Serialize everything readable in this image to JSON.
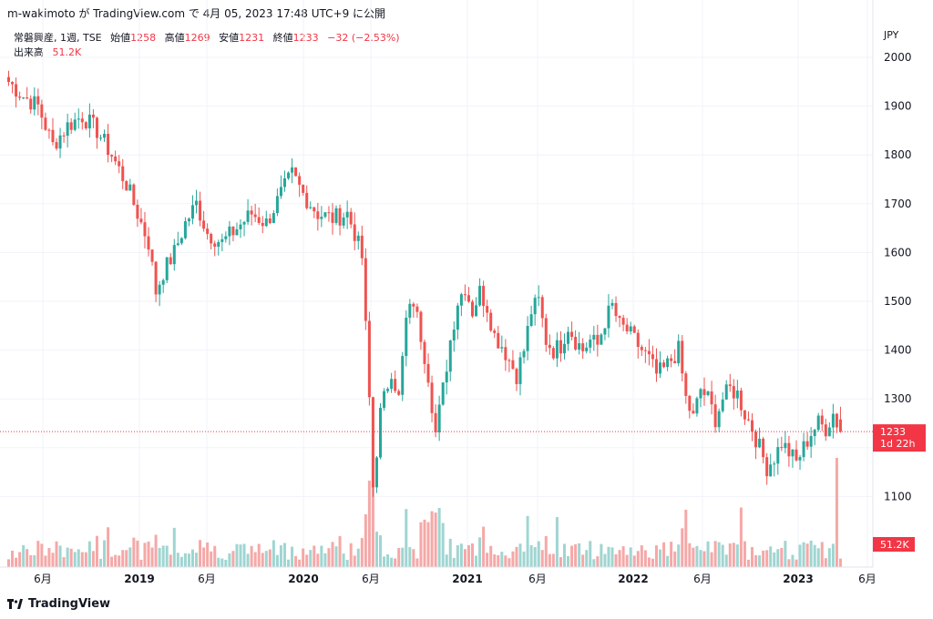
{
  "header": {
    "title": "m-wakimoto が TradingView.com で 4月 05, 2023 17:48 UTC+9 に公開"
  },
  "legend": {
    "symbol": "常磐興産, 1週, TSE",
    "open_label": "始値",
    "open": "1258",
    "high_label": "高値",
    "high": "1269",
    "low_label": "安値",
    "low": "1231",
    "close_label": "終値",
    "close": "1233",
    "change": "−32 (−2.53%)",
    "volume_label": "出来高",
    "volume": "51.2K"
  },
  "chart_data": {
    "type": "candlestick",
    "currency": "JPY",
    "y_ticks": [
      1100,
      1200,
      1300,
      1400,
      1500,
      1600,
      1700,
      1800,
      1900,
      2000
    ],
    "ylim": [
      1020,
      2060
    ],
    "x_ticks": [
      "6月",
      "2019",
      "6月",
      "2020",
      "6月",
      "2021",
      "6月",
      "2022",
      "6月",
      "2023",
      "6月"
    ],
    "last_price_label": "1233",
    "countdown_label": "1d 22h",
    "volume_label": "51.2K",
    "colors": {
      "up": "#26a69a",
      "down": "#ef5350",
      "vol_up": "#9fd5d1",
      "vol_down": "#f5a8a7",
      "grid": "#f0f3fa"
    },
    "weekly_close_path": [
      [
        0,
        1950
      ],
      [
        4,
        1920
      ],
      [
        8,
        1900
      ],
      [
        12,
        1820
      ],
      [
        16,
        1860
      ],
      [
        20,
        1880
      ],
      [
        24,
        1850
      ],
      [
        28,
        1800
      ],
      [
        32,
        1740
      ],
      [
        35,
        1680
      ],
      [
        38,
        1620
      ],
      [
        40,
        1520
      ],
      [
        42,
        1560
      ],
      [
        45,
        1600
      ],
      [
        48,
        1660
      ],
      [
        51,
        1700
      ],
      [
        54,
        1640
      ],
      [
        58,
        1620
      ],
      [
        62,
        1650
      ],
      [
        66,
        1680
      ],
      [
        70,
        1660
      ],
      [
        74,
        1720
      ],
      [
        77,
        1760
      ],
      [
        80,
        1720
      ],
      [
        84,
        1680
      ],
      [
        88,
        1670
      ],
      [
        92,
        1680
      ],
      [
        94,
        1640
      ],
      [
        96,
        1590
      ],
      [
        98,
        1300
      ],
      [
        99,
        1120
      ],
      [
        101,
        1270
      ],
      [
        104,
        1360
      ],
      [
        106,
        1300
      ],
      [
        108,
        1460
      ],
      [
        110,
        1500
      ],
      [
        112,
        1430
      ],
      [
        114,
        1350
      ],
      [
        116,
        1230
      ],
      [
        118,
        1320
      ],
      [
        120,
        1420
      ],
      [
        122,
        1500
      ],
      [
        124,
        1530
      ],
      [
        126,
        1480
      ],
      [
        128,
        1520
      ],
      [
        130,
        1490
      ],
      [
        132,
        1430
      ],
      [
        134,
        1410
      ],
      [
        136,
        1380
      ],
      [
        138,
        1350
      ],
      [
        140,
        1400
      ],
      [
        142,
        1480
      ],
      [
        144,
        1500
      ],
      [
        146,
        1420
      ],
      [
        148,
        1400
      ],
      [
        150,
        1410
      ],
      [
        152,
        1450
      ],
      [
        154,
        1420
      ],
      [
        156,
        1400
      ],
      [
        158,
        1420
      ],
      [
        160,
        1410
      ],
      [
        162,
        1460
      ],
      [
        164,
        1490
      ],
      [
        166,
        1450
      ],
      [
        168,
        1440
      ],
      [
        170,
        1420
      ],
      [
        172,
        1400
      ],
      [
        174,
        1380
      ],
      [
        176,
        1350
      ],
      [
        178,
        1360
      ],
      [
        180,
        1380
      ],
      [
        182,
        1400
      ],
      [
        184,
        1300
      ],
      [
        186,
        1260
      ],
      [
        188,
        1320
      ],
      [
        190,
        1300
      ],
      [
        192,
        1260
      ],
      [
        194,
        1300
      ],
      [
        196,
        1320
      ],
      [
        198,
        1310
      ],
      [
        200,
        1270
      ],
      [
        202,
        1240
      ],
      [
        204,
        1200
      ],
      [
        206,
        1160
      ],
      [
        208,
        1180
      ],
      [
        210,
        1210
      ],
      [
        212,
        1190
      ],
      [
        214,
        1170
      ],
      [
        216,
        1200
      ],
      [
        218,
        1230
      ],
      [
        220,
        1250
      ],
      [
        222,
        1240
      ],
      [
        224,
        1270
      ],
      [
        226,
        1233
      ]
    ]
  }
}
